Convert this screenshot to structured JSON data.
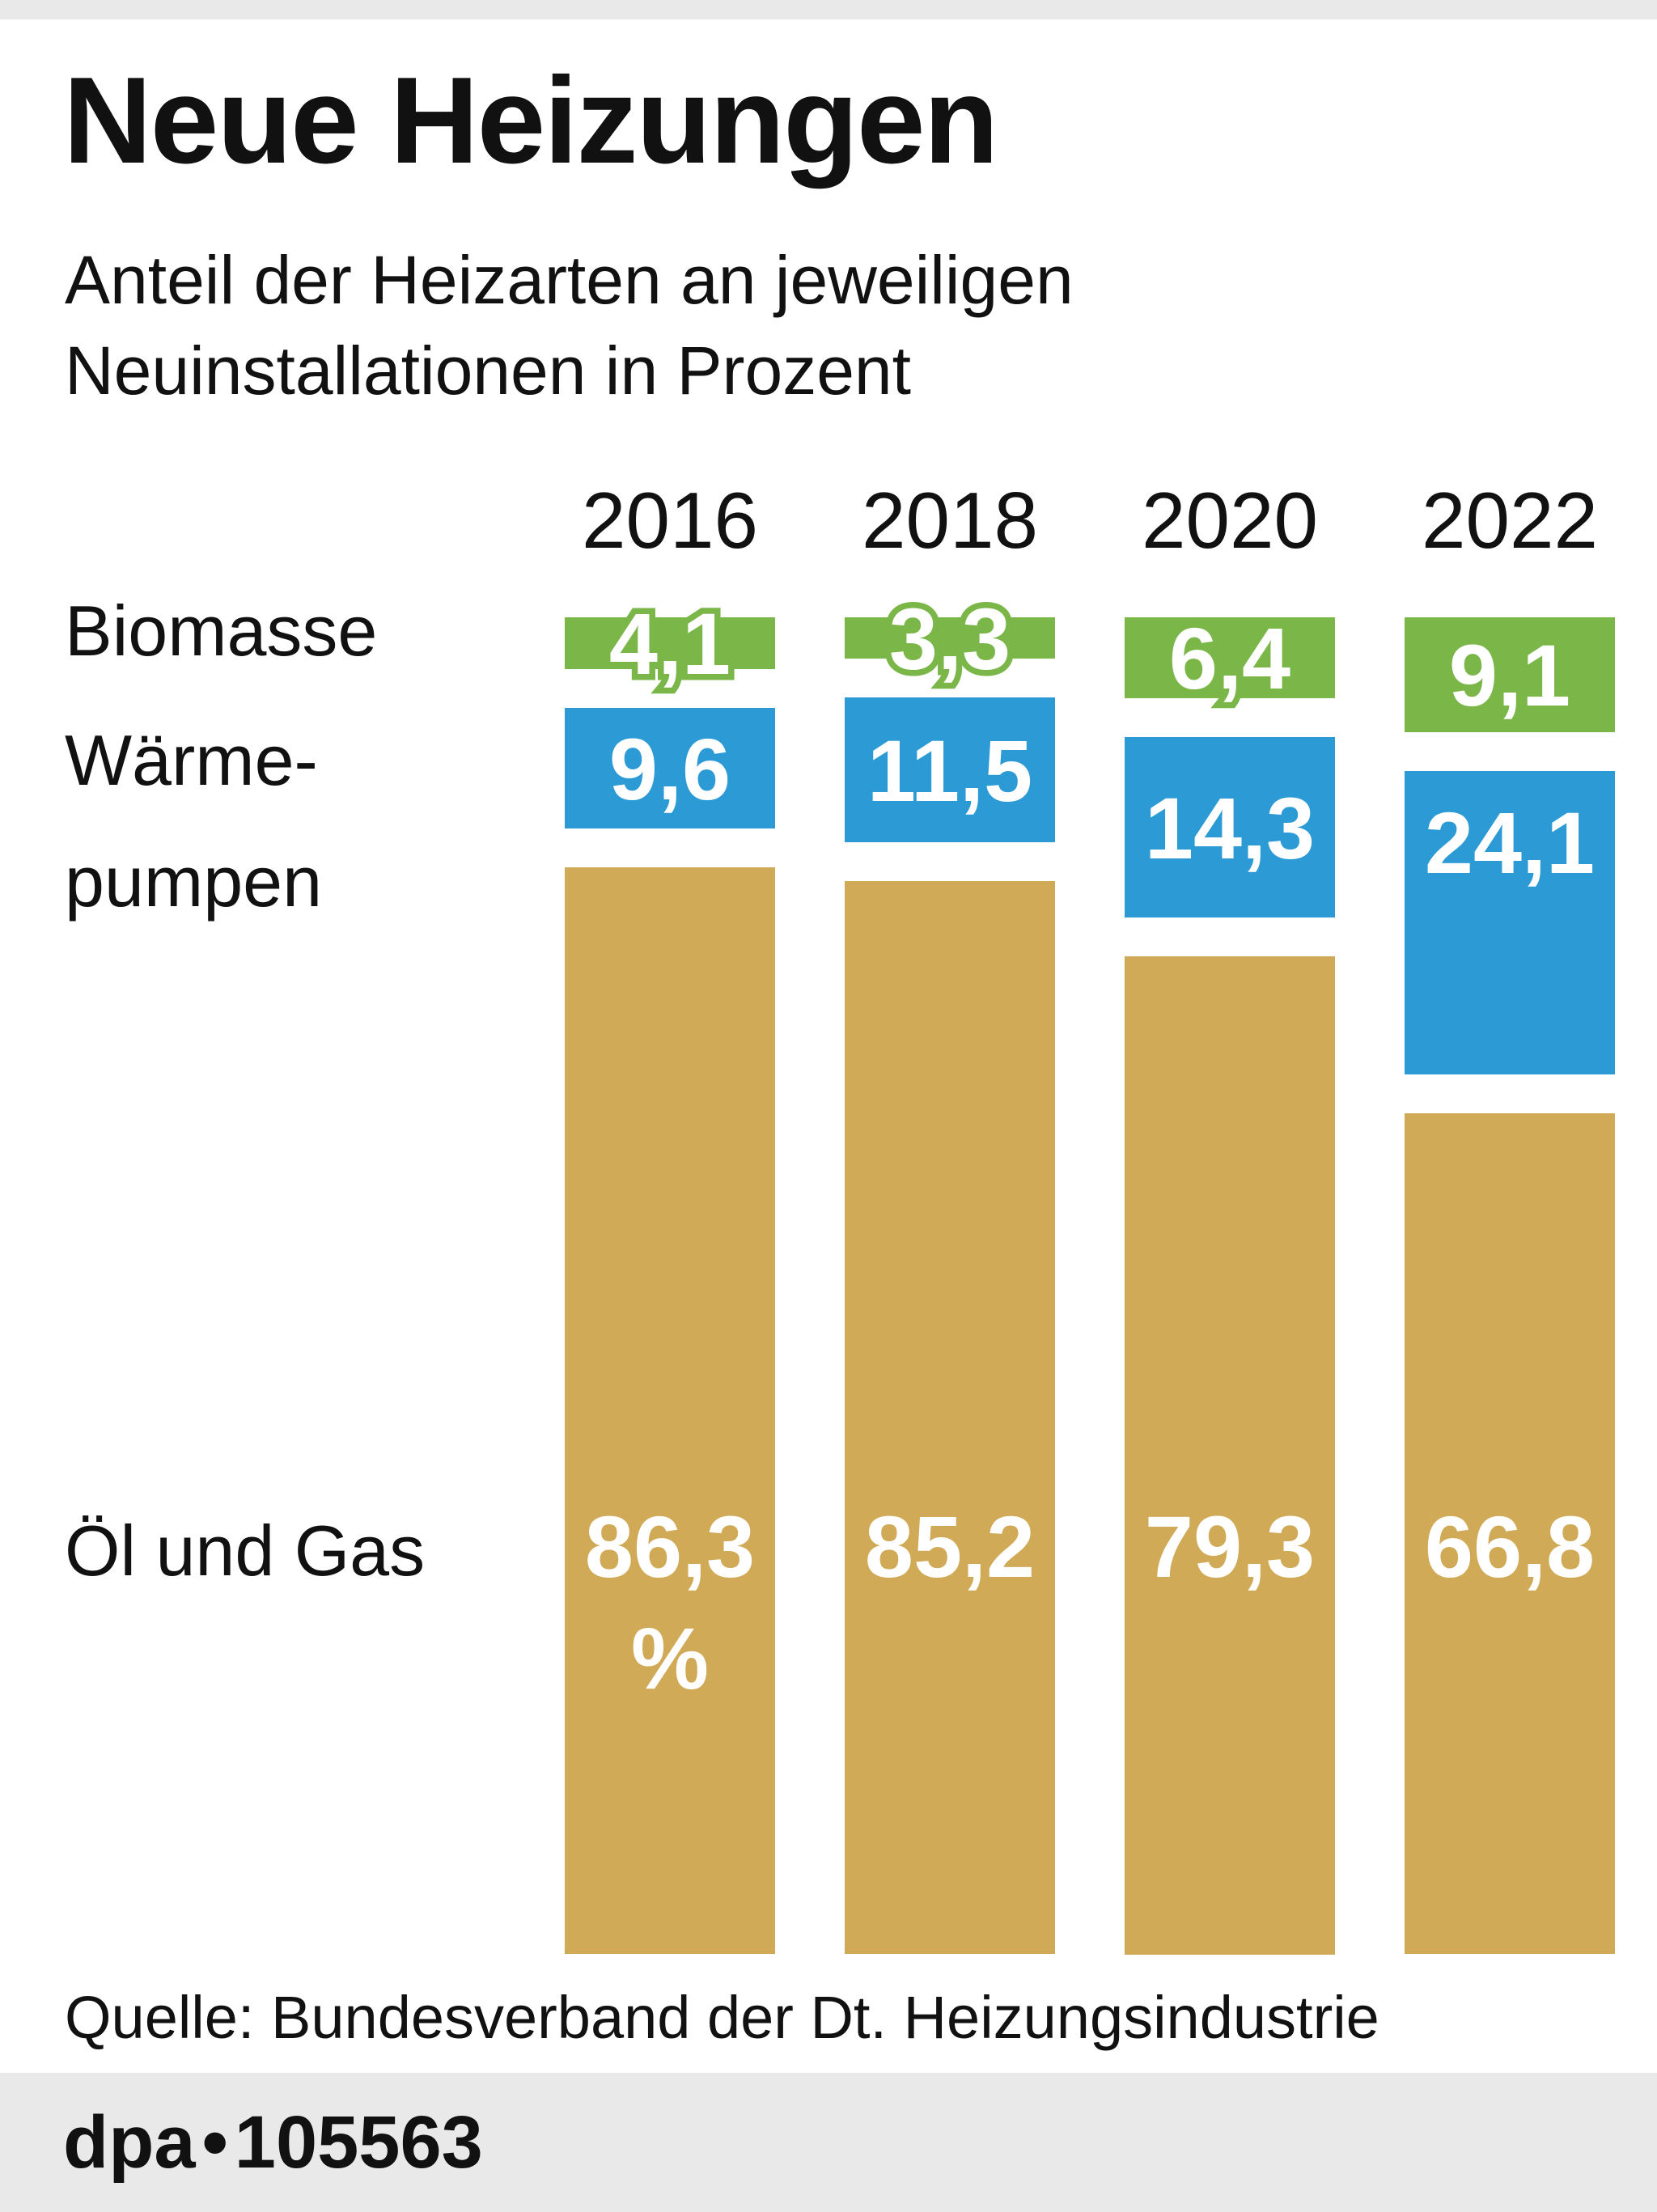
{
  "page": {
    "background": "#ffffff",
    "top_strip_color": "#e9e9e9"
  },
  "header": {
    "title": "Neue Heizungen",
    "subtitle_line1": "Anteil der Heizarten an jeweiligen",
    "subtitle_line2": "Neuinstallationen in Prozent"
  },
  "chart_data": {
    "type": "bar",
    "stacked": true,
    "orientation": "vertical",
    "unit": "Prozent",
    "categories": [
      "2016",
      "2018",
      "2020",
      "2022"
    ],
    "series": [
      {
        "key": "biomasse",
        "name": "Biomasse",
        "color": "#7ab648",
        "values": [
          4.1,
          3.3,
          6.4,
          9.1
        ],
        "labels": [
          "4,1",
          "3,3",
          "6,4",
          "9,1"
        ]
      },
      {
        "key": "waermepumpen",
        "name": "Wärmepumpen",
        "color": "#2b9ad5",
        "values": [
          9.6,
          11.5,
          14.3,
          24.1
        ],
        "labels": [
          "9,6",
          "11,5",
          "14,3",
          "24,1"
        ]
      },
      {
        "key": "oel-und-gas",
        "name": "Öl und Gas",
        "color": "#d0aa56",
        "values": [
          86.3,
          85.2,
          79.3,
          66.8
        ],
        "labels": [
          "86,3",
          "85,2",
          "79,3",
          "66,8"
        ],
        "labels_line2": [
          "%",
          "",
          "",
          ""
        ]
      }
    ],
    "row_labels": [
      "Biomasse",
      "Wärme-",
      "pumpen",
      "Öl und Gas"
    ],
    "value_label_color": "#ffffff",
    "grid": false,
    "legend_position": "left"
  },
  "source": "Quelle: Bundesverband der Dt. Heizungsindustrie",
  "footer": {
    "brand": "dpa",
    "separator": "•",
    "number": "105563",
    "strip_color": "#e9e9e9"
  }
}
